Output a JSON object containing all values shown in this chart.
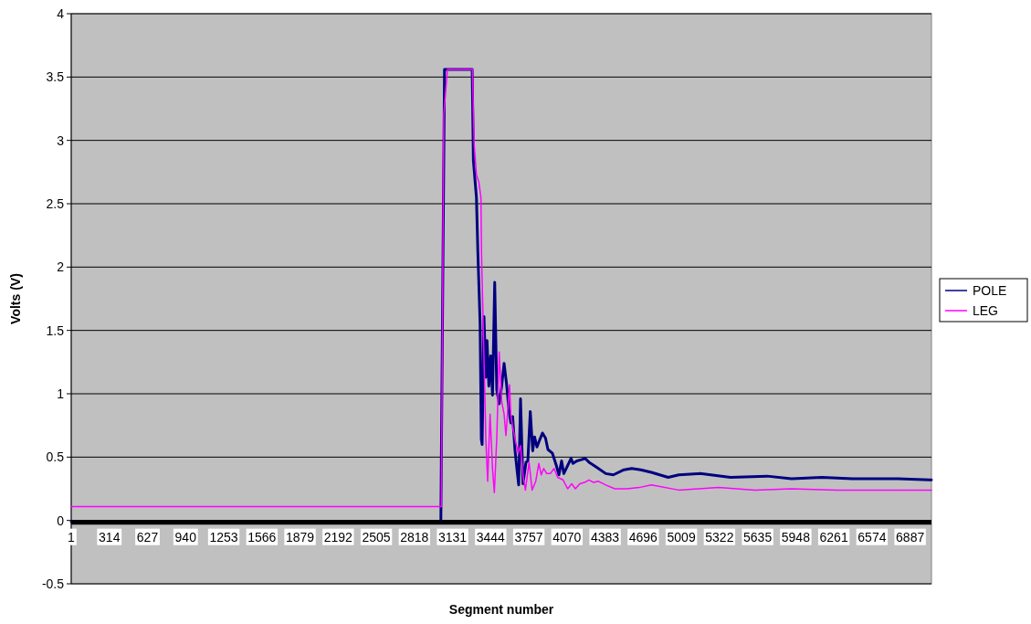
{
  "chart_data": {
    "type": "line",
    "xlabel": "Segment number",
    "ylabel": "Volts (V)",
    "xlim": [
      1,
      7062
    ],
    "xticks": [
      1,
      314,
      627,
      940,
      1253,
      1566,
      1879,
      2192,
      2505,
      2818,
      3131,
      3444,
      3757,
      4070,
      4383,
      4696,
      5009,
      5322,
      5635,
      5948,
      6261,
      6574,
      6887
    ],
    "ylim": [
      -0.5,
      4
    ],
    "yticks": [
      -0.5,
      0,
      0.5,
      1,
      1.5,
      2,
      2.5,
      3,
      3.5,
      4
    ],
    "grid": "y",
    "legend": "right",
    "marker": "none",
    "line_style": "solid",
    "series": [
      {
        "name": "POLE",
        "color": "#000080",
        "x": [
          1,
          3035,
          3065,
          3292,
          3302,
          3327,
          3339,
          3357,
          3367,
          3374,
          3389,
          3404,
          3414,
          3429,
          3444,
          3459,
          3477,
          3494,
          3514,
          3534,
          3554,
          3574,
          3594,
          3609,
          3624,
          3644,
          3659,
          3674,
          3689,
          3709,
          3734,
          3749,
          3769,
          3789,
          3804,
          3824,
          3844,
          3869,
          3894,
          3914,
          3951,
          3984,
          4004,
          4026,
          4044,
          4064,
          4089,
          4104,
          4119,
          4152,
          4189,
          4219,
          4251,
          4314,
          4389,
          4451,
          4538,
          4601,
          4676,
          4763,
          4901,
          4988,
          5163,
          5413,
          5713,
          5913,
          6163,
          6413,
          6788,
          7062
        ],
        "values": [
          -0.01,
          -0.01,
          3.56,
          3.56,
          2.84,
          2.55,
          2.11,
          1.56,
          0.64,
          0.6,
          1.61,
          1.13,
          1.42,
          1.06,
          1.3,
          0.99,
          1.88,
          1.03,
          0.92,
          1.06,
          1.24,
          1.08,
          0.87,
          0.77,
          0.82,
          0.55,
          0.41,
          0.28,
          0.96,
          0.29,
          0.46,
          0.47,
          0.86,
          0.55,
          0.66,
          0.58,
          0.63,
          0.69,
          0.65,
          0.56,
          0.53,
          0.43,
          0.36,
          0.47,
          0.37,
          0.41,
          0.46,
          0.49,
          0.45,
          0.47,
          0.48,
          0.49,
          0.46,
          0.42,
          0.37,
          0.36,
          0.4,
          0.41,
          0.4,
          0.38,
          0.34,
          0.36,
          0.37,
          0.34,
          0.35,
          0.33,
          0.34,
          0.33,
          0.33,
          0.32
        ]
      },
      {
        "name": "LEG",
        "color": "#ff00ff",
        "x": [
          1,
          3039,
          3059,
          3089,
          3294,
          3309,
          3327,
          3347,
          3364,
          3369,
          3384,
          3404,
          3419,
          3439,
          3459,
          3474,
          3494,
          3514,
          3534,
          3554,
          3569,
          3584,
          3599,
          3609,
          3624,
          3649,
          3669,
          3689,
          3709,
          3729,
          3759,
          3784,
          3814,
          3839,
          3859,
          3879,
          3904,
          3934,
          3964,
          3994,
          4038,
          4076,
          4109,
          4139,
          4176,
          4214,
          4251,
          4289,
          4326,
          4389,
          4463,
          4563,
          4663,
          4763,
          4988,
          5313,
          5613,
          5913,
          6288,
          6788,
          7062
        ],
        "values": [
          0.11,
          0.11,
          3.2,
          3.56,
          3.56,
          2.96,
          2.73,
          2.67,
          2.55,
          2.09,
          1.49,
          0.65,
          0.31,
          0.84,
          0.41,
          0.22,
          0.65,
          1.33,
          0.94,
          0.84,
          0.67,
          0.87,
          1.07,
          0.84,
          0.74,
          0.62,
          0.53,
          0.59,
          0.36,
          0.24,
          0.46,
          0.24,
          0.31,
          0.45,
          0.36,
          0.41,
          0.37,
          0.37,
          0.41,
          0.34,
          0.32,
          0.25,
          0.29,
          0.25,
          0.29,
          0.3,
          0.32,
          0.3,
          0.31,
          0.28,
          0.25,
          0.25,
          0.26,
          0.28,
          0.24,
          0.26,
          0.24,
          0.25,
          0.24,
          0.24,
          0.24
        ]
      }
    ]
  }
}
